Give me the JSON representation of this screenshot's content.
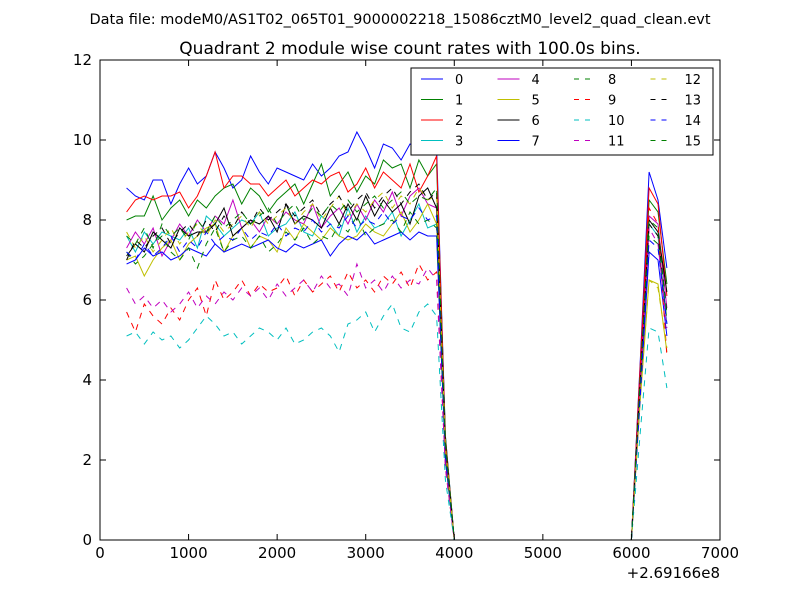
{
  "suptitle": "Data file: modeM0/AS1T02_065T01_9000002218_15086cztM0_level2_quad_clean.evt",
  "chart_data": {
    "type": "line",
    "title": "Quadrant 2 module wise count rates with 100.0s bins.",
    "xlabel": "",
    "ylabel": "",
    "x_offset_label": "+2.69166e8",
    "xlim": [
      0,
      7000
    ],
    "ylim": [
      0,
      12
    ],
    "xticks": [
      0,
      1000,
      2000,
      3000,
      4000,
      5000,
      6000,
      7000
    ],
    "yticks": [
      0,
      2,
      4,
      6,
      8,
      10,
      12
    ],
    "grid": false,
    "legend_position": "top-right",
    "legend_columns": 4,
    "x": [
      300,
      400,
      500,
      600,
      700,
      800,
      900,
      1000,
      1100,
      1200,
      1300,
      1400,
      1500,
      1600,
      1700,
      1800,
      1900,
      2000,
      2100,
      2200,
      2300,
      2400,
      2500,
      2600,
      2700,
      2800,
      2900,
      3000,
      3100,
      3200,
      3300,
      3400,
      3500,
      3600,
      3700,
      3800,
      3900,
      4000,
      4100,
      4200,
      4300,
      4400,
      4500,
      4600,
      4700,
      4800,
      4900,
      5000,
      5100,
      5200,
      5300,
      5400,
      5500,
      5600,
      5700,
      5800,
      5900,
      6000,
      6100,
      6200,
      6300,
      6400
    ],
    "series": [
      {
        "name": "0",
        "color": "#0000ff",
        "dash": "solid",
        "values": [
          8.8,
          8.6,
          8.5,
          9.0,
          9.0,
          8.4,
          8.9,
          9.3,
          8.9,
          9.1,
          9.7,
          9.3,
          8.8,
          9.0,
          9.6,
          9.2,
          8.9,
          9.3,
          9.2,
          9.1,
          9.0,
          9.4,
          9.1,
          9.3,
          9.6,
          9.7,
          10.2,
          9.8,
          9.3,
          9.9,
          9.8,
          9.5,
          9.9,
          9.8,
          9.8,
          9.8,
          2.6,
          0.0,
          0.0,
          0.0,
          0.0,
          0.0,
          0.0,
          0.0,
          0.0,
          0.0,
          0.0,
          0.0,
          0.0,
          0.0,
          0.0,
          0.0,
          0.0,
          0.0,
          0.0,
          0.0,
          0.0,
          0.0,
          4.5,
          9.2,
          8.5,
          6.8
        ]
      },
      {
        "name": "1",
        "color": "#008000",
        "dash": "solid",
        "values": [
          8.0,
          8.1,
          8.1,
          8.6,
          8.0,
          8.3,
          8.5,
          8.1,
          8.5,
          8.3,
          8.6,
          8.8,
          8.9,
          8.4,
          8.8,
          8.6,
          8.2,
          8.5,
          8.7,
          8.9,
          8.4,
          8.9,
          9.4,
          8.6,
          8.9,
          9.2,
          8.7,
          9.1,
          8.9,
          9.5,
          9.3,
          9.4,
          8.8,
          9.5,
          9.1,
          9.4,
          2.6,
          0.0,
          0.0,
          0.0,
          0.0,
          0.0,
          0.0,
          0.0,
          0.0,
          0.0,
          0.0,
          0.0,
          0.0,
          0.0,
          0.0,
          0.0,
          0.0,
          0.0,
          0.0,
          0.0,
          0.0,
          0.0,
          4.3,
          8.5,
          8.2,
          6.4
        ]
      },
      {
        "name": "2",
        "color": "#ff0000",
        "dash": "solid",
        "values": [
          8.2,
          8.5,
          8.6,
          8.5,
          8.6,
          8.6,
          8.7,
          8.3,
          8.6,
          9.1,
          9.7,
          8.8,
          9.1,
          9.1,
          8.9,
          8.9,
          8.6,
          8.8,
          9.0,
          8.6,
          8.8,
          9.0,
          8.9,
          9.1,
          9.2,
          8.7,
          8.9,
          9.3,
          8.8,
          9.2,
          9.0,
          8.8,
          9.4,
          8.7,
          9.1,
          9.6,
          2.5,
          0.0,
          0.0,
          0.0,
          0.0,
          0.0,
          0.0,
          0.0,
          0.0,
          0.0,
          0.0,
          0.0,
          0.0,
          0.0,
          0.0,
          0.0,
          0.0,
          0.0,
          0.0,
          0.0,
          0.0,
          0.0,
          4.4,
          8.8,
          8.4,
          6.1
        ]
      },
      {
        "name": "3",
        "color": "#00bfbf",
        "dash": "solid",
        "values": [
          7.6,
          7.2,
          7.7,
          7.4,
          7.7,
          7.6,
          7.5,
          7.8,
          7.3,
          8.1,
          7.9,
          7.6,
          7.8,
          8.0,
          7.9,
          8.2,
          7.6,
          7.8,
          7.9,
          8.2,
          7.7,
          7.6,
          8.1,
          7.9,
          7.6,
          8.3,
          7.7,
          8.1,
          7.8,
          7.9,
          8.2,
          7.6,
          8.0,
          8.4,
          7.8,
          7.9,
          2.1,
          0.0,
          0.0,
          0.0,
          0.0,
          0.0,
          0.0,
          0.0,
          0.0,
          0.0,
          0.0,
          0.0,
          0.0,
          0.0,
          0.0,
          0.0,
          0.0,
          0.0,
          0.0,
          0.0,
          0.0,
          0.0,
          3.9,
          7.9,
          7.6,
          5.4
        ]
      },
      {
        "name": "4",
        "color": "#bf00bf",
        "dash": "solid",
        "values": [
          7.3,
          7.7,
          7.4,
          7.8,
          7.1,
          7.5,
          7.9,
          7.6,
          8.0,
          7.7,
          8.1,
          7.9,
          8.5,
          7.8,
          8.0,
          7.7,
          8.1,
          7.9,
          8.2,
          8.0,
          7.9,
          8.4,
          7.8,
          8.1,
          8.3,
          7.9,
          8.4,
          8.0,
          8.5,
          8.2,
          8.7,
          8.1,
          8.6,
          8.8,
          8.4,
          8.3,
          2.2,
          0.0,
          0.0,
          0.0,
          0.0,
          0.0,
          0.0,
          0.0,
          0.0,
          0.0,
          0.0,
          0.0,
          0.0,
          0.0,
          0.0,
          0.0,
          0.0,
          0.0,
          0.0,
          0.0,
          0.0,
          0.0,
          4.1,
          8.1,
          7.9,
          5.8
        ]
      },
      {
        "name": "5",
        "color": "#bfbf00",
        "dash": "solid",
        "values": [
          7.0,
          7.1,
          6.6,
          7.0,
          7.3,
          7.5,
          7.0,
          7.4,
          7.6,
          7.8,
          7.9,
          7.2,
          7.6,
          7.8,
          7.3,
          7.6,
          7.5,
          7.2,
          7.8,
          7.5,
          7.9,
          7.7,
          7.5,
          7.8,
          7.6,
          7.5,
          7.6,
          7.9,
          7.7,
          7.6,
          7.9,
          8.2,
          7.7,
          8.0,
          8.4,
          7.9,
          2.0,
          0.0,
          0.0,
          0.0,
          0.0,
          0.0,
          0.0,
          0.0,
          0.0,
          0.0,
          0.0,
          0.0,
          0.0,
          0.0,
          0.0,
          0.0,
          0.0,
          0.0,
          0.0,
          0.0,
          0.0,
          0.0,
          3.5,
          6.5,
          6.4,
          4.7
        ]
      },
      {
        "name": "6",
        "color": "#000000",
        "dash": "solid",
        "values": [
          7.1,
          7.4,
          7.2,
          7.7,
          7.5,
          7.3,
          7.8,
          7.6,
          7.7,
          7.7,
          7.9,
          8.3,
          7.6,
          7.8,
          8.0,
          7.9,
          8.1,
          7.7,
          8.4,
          7.9,
          8.1,
          8.0,
          7.8,
          8.3,
          7.9,
          8.4,
          8.0,
          8.6,
          8.1,
          8.5,
          8.2,
          8.4,
          7.9,
          8.6,
          8.8,
          8.3,
          2.3,
          0.0,
          0.0,
          0.0,
          0.0,
          0.0,
          0.0,
          0.0,
          0.0,
          0.0,
          0.0,
          0.0,
          0.0,
          0.0,
          0.0,
          0.0,
          0.0,
          0.0,
          0.0,
          0.0,
          0.0,
          0.0,
          4.0,
          8.0,
          7.7,
          6.2
        ]
      },
      {
        "name": "7",
        "color": "#0000ff",
        "dash": "solid",
        "values": [
          6.9,
          7.0,
          7.3,
          7.1,
          7.2,
          7.0,
          7.1,
          7.3,
          7.2,
          7.1,
          7.4,
          7.2,
          7.3,
          7.4,
          7.3,
          7.4,
          7.5,
          7.3,
          7.2,
          7.4,
          7.3,
          7.4,
          7.5,
          7.1,
          7.4,
          7.6,
          7.5,
          7.7,
          7.4,
          7.5,
          7.6,
          7.7,
          7.5,
          7.7,
          7.6,
          7.6,
          2.0,
          0.0,
          0.0,
          0.0,
          0.0,
          0.0,
          0.0,
          0.0,
          0.0,
          0.0,
          0.0,
          0.0,
          0.0,
          0.0,
          0.0,
          0.0,
          0.0,
          0.0,
          0.0,
          0.0,
          0.0,
          0.0,
          3.6,
          7.2,
          7.0,
          5.1
        ]
      },
      {
        "name": "8",
        "color": "#008000",
        "dash": "dashed",
        "values": [
          7.2,
          6.9,
          7.1,
          7.4,
          7.6,
          7.2,
          7.0,
          7.3,
          6.8,
          7.4,
          7.8,
          7.2,
          7.5,
          7.6,
          7.3,
          7.6,
          7.2,
          7.4,
          7.7,
          7.5,
          7.8,
          7.4,
          7.6,
          7.5,
          7.9,
          7.7,
          8.1,
          7.6,
          7.8,
          7.9,
          8.0,
          7.7,
          8.2,
          7.9,
          8.0,
          7.8,
          2.1,
          0.0,
          0.0,
          0.0,
          0.0,
          0.0,
          0.0,
          0.0,
          0.0,
          0.0,
          0.0,
          0.0,
          0.0,
          0.0,
          0.0,
          0.0,
          0.0,
          0.0,
          0.0,
          0.0,
          0.0,
          0.0,
          3.8,
          7.6,
          7.4,
          5.5
        ]
      },
      {
        "name": "9",
        "color": "#ff0000",
        "dash": "dashed",
        "values": [
          5.7,
          5.2,
          5.9,
          5.6,
          5.4,
          5.8,
          5.5,
          6.0,
          6.3,
          5.6,
          6.5,
          6.0,
          6.2,
          6.5,
          6.1,
          6.4,
          6.2,
          6.3,
          6.6,
          6.1,
          6.5,
          6.2,
          6.4,
          6.6,
          6.2,
          6.7,
          6.3,
          6.5,
          6.2,
          6.6,
          6.4,
          6.7,
          6.3,
          6.9,
          6.5,
          6.7,
          1.8,
          0.0,
          0.0,
          0.0,
          0.0,
          0.0,
          0.0,
          0.0,
          0.0,
          0.0,
          0.0,
          0.0,
          0.0,
          0.0,
          0.0,
          0.0,
          0.0,
          0.0,
          0.0,
          0.0,
          0.0,
          0.0,
          4.2,
          8.3,
          7.9,
          4.6
        ]
      },
      {
        "name": "10",
        "color": "#00bfbf",
        "dash": "dashed",
        "values": [
          5.1,
          5.2,
          4.9,
          5.2,
          5.0,
          5.1,
          4.8,
          5.0,
          5.3,
          5.6,
          5.4,
          5.1,
          5.2,
          4.9,
          5.1,
          5.3,
          5.2,
          5.0,
          5.3,
          4.9,
          5.0,
          5.2,
          5.3,
          5.1,
          4.7,
          5.4,
          5.5,
          5.7,
          5.2,
          5.6,
          5.9,
          5.3,
          5.2,
          5.7,
          5.9,
          5.6,
          1.5,
          0.0,
          0.0,
          0.0,
          0.0,
          0.0,
          0.0,
          0.0,
          0.0,
          0.0,
          0.0,
          0.0,
          0.0,
          0.0,
          0.0,
          0.0,
          0.0,
          0.0,
          0.0,
          0.0,
          0.0,
          0.0,
          2.7,
          5.3,
          5.2,
          3.8
        ]
      },
      {
        "name": "11",
        "color": "#bf00bf",
        "dash": "dashed",
        "values": [
          6.3,
          5.9,
          6.1,
          5.8,
          6.0,
          5.7,
          5.9,
          6.2,
          5.8,
          6.1,
          5.9,
          6.2,
          6.0,
          6.3,
          6.1,
          6.3,
          6.0,
          6.4,
          6.1,
          6.3,
          6.5,
          6.2,
          6.6,
          6.3,
          6.4,
          6.1,
          6.9,
          6.3,
          6.5,
          6.2,
          6.6,
          6.3,
          6.5,
          6.4,
          6.8,
          6.5,
          1.8,
          0.0,
          0.0,
          0.0,
          0.0,
          0.0,
          0.0,
          0.0,
          0.0,
          0.0,
          0.0,
          0.0,
          0.0,
          0.0,
          0.0,
          0.0,
          0.0,
          0.0,
          0.0,
          0.0,
          0.0,
          0.0,
          3.9,
          7.8,
          7.4,
          5.3
        ]
      },
      {
        "name": "12",
        "color": "#bfbf00",
        "dash": "dashed",
        "values": [
          7.7,
          7.3,
          7.6,
          7.2,
          7.5,
          7.8,
          7.4,
          7.7,
          7.9,
          7.6,
          8.0,
          7.7,
          7.9,
          8.1,
          7.8,
          8.2,
          7.9,
          8.1,
          8.3,
          7.9,
          8.2,
          8.4,
          8.0,
          8.3,
          8.6,
          8.1,
          8.4,
          8.2,
          8.5,
          8.7,
          8.3,
          8.6,
          8.4,
          8.8,
          8.5,
          8.6,
          2.3,
          0.0,
          0.0,
          0.0,
          0.0,
          0.0,
          0.0,
          0.0,
          0.0,
          0.0,
          0.0,
          0.0,
          0.0,
          0.0,
          0.0,
          0.0,
          0.0,
          0.0,
          0.0,
          0.0,
          0.0,
          0.0,
          3.6,
          6.5,
          6.3,
          4.8
        ]
      },
      {
        "name": "13",
        "color": "#000000",
        "dash": "dashed",
        "values": [
          7.0,
          7.5,
          7.3,
          7.6,
          7.8,
          7.4,
          7.7,
          7.9,
          7.6,
          8.0,
          7.7,
          8.1,
          7.8,
          8.2,
          7.9,
          8.3,
          8.0,
          8.2,
          8.4,
          8.1,
          8.3,
          8.5,
          8.1,
          8.4,
          8.6,
          8.2,
          8.5,
          8.7,
          8.3,
          8.6,
          8.8,
          8.4,
          8.7,
          8.9,
          8.5,
          8.7,
          2.4,
          0.0,
          0.0,
          0.0,
          0.0,
          0.0,
          0.0,
          0.0,
          0.0,
          0.0,
          0.0,
          0.0,
          0.0,
          0.0,
          0.0,
          0.0,
          0.0,
          0.0,
          0.0,
          0.0,
          0.0,
          0.0,
          4.0,
          7.9,
          7.6,
          5.7
        ]
      },
      {
        "name": "14",
        "color": "#0000ff",
        "dash": "dashed",
        "values": [
          7.2,
          7.0,
          7.4,
          7.1,
          7.3,
          7.6,
          7.2,
          7.5,
          7.3,
          7.7,
          7.4,
          7.6,
          7.5,
          7.8,
          7.5,
          7.7,
          7.6,
          7.9,
          7.6,
          7.8,
          7.7,
          8.0,
          7.7,
          7.9,
          7.8,
          8.1,
          7.8,
          8.0,
          7.9,
          8.2,
          7.9,
          8.1,
          8.0,
          8.3,
          8.0,
          8.1,
          2.2,
          0.0,
          0.0,
          0.0,
          0.0,
          0.0,
          0.0,
          0.0,
          0.0,
          0.0,
          0.0,
          0.0,
          0.0,
          0.0,
          0.0,
          0.0,
          0.0,
          0.0,
          0.0,
          0.0,
          0.0,
          0.0,
          3.7,
          7.5,
          7.3,
          5.4
        ]
      },
      {
        "name": "15",
        "color": "#008000",
        "dash": "dashed",
        "values": [
          7.6,
          7.4,
          7.8,
          7.3,
          7.9,
          7.6,
          7.8,
          7.5,
          8.0,
          7.7,
          8.1,
          7.8,
          8.0,
          8.2,
          7.9,
          8.1,
          8.3,
          7.9,
          8.2,
          8.4,
          8.0,
          8.3,
          8.1,
          8.4,
          8.2,
          8.5,
          8.2,
          8.4,
          8.6,
          8.3,
          8.5,
          8.7,
          8.4,
          8.6,
          8.5,
          8.8,
          2.4,
          0.0,
          0.0,
          0.0,
          0.0,
          0.0,
          0.0,
          0.0,
          0.0,
          0.0,
          0.0,
          0.0,
          0.0,
          0.0,
          0.0,
          0.0,
          0.0,
          0.0,
          0.0,
          0.0,
          0.0,
          0.0,
          4.1,
          8.0,
          7.8,
          5.6
        ]
      }
    ]
  }
}
